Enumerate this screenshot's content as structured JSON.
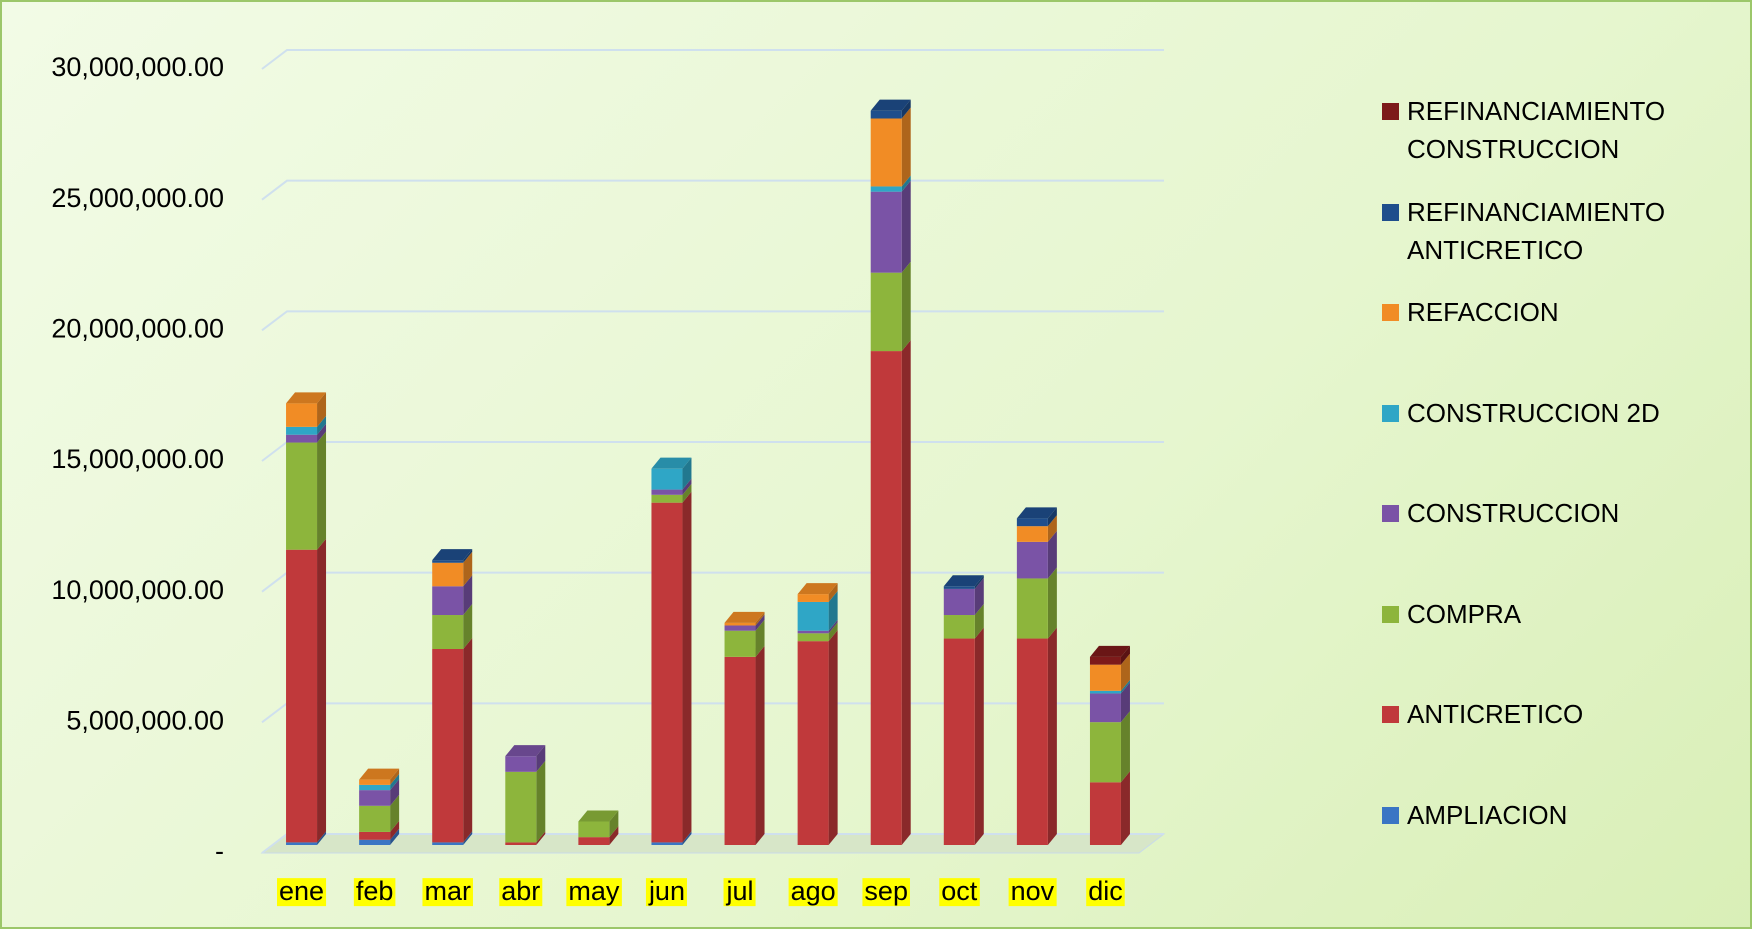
{
  "chart_data": {
    "type": "bar3d_stacked",
    "categories": [
      "ene",
      "feb",
      "mar",
      "abr",
      "may",
      "jun",
      "jul",
      "ago",
      "sep",
      "oct",
      "nov",
      "dic"
    ],
    "series": [
      {
        "name": "AMPLIACION",
        "color": "#3a75c4",
        "values": [
          100000.0,
          200000.0,
          100000.0,
          0,
          0,
          100000.0,
          0,
          0,
          0,
          0,
          0,
          0
        ]
      },
      {
        "name": "ANTICRETICO",
        "color": "#c0393b",
        "values": [
          11200000.0,
          300000.0,
          7400000.0,
          100000.0,
          300000.0,
          13000000.0,
          7200000.0,
          7800000.0,
          18900000.0,
          7900000.0,
          7900000.0,
          2400000.0
        ]
      },
      {
        "name": "COMPRA",
        "color": "#8db53c",
        "values": [
          4100000.0,
          1000000.0,
          1300000.0,
          2700000.0,
          600000.0,
          300000.0,
          1000000.0,
          300000.0,
          3000000.0,
          900000.0,
          2300000.0,
          2300000.0
        ]
      },
      {
        "name": "CONSTRUCCION",
        "color": "#7a53a6",
        "values": [
          300000.0,
          600000.0,
          1100000.0,
          600000.0,
          0,
          200000.0,
          200000.0,
          100000.0,
          3100000.0,
          1000000.0,
          1400000.0,
          1100000.0
        ]
      },
      {
        "name": "CONSTRUCCION 2D",
        "color": "#2fa6c6",
        "values": [
          300000.0,
          200000.0,
          0,
          0,
          0,
          800000.0,
          0,
          1100000.0,
          200000.0,
          0,
          0,
          100000.0
        ]
      },
      {
        "name": "REFACCION",
        "color": "#f18c25",
        "values": [
          900000.0,
          200000.0,
          900000.0,
          0,
          0,
          0,
          100000.0,
          300000.0,
          2600000.0,
          0,
          600000.0,
          1000000.0
        ]
      },
      {
        "name": "REFINANCIAMIENTO ANTICRETICO",
        "color": "#1f4e8c",
        "values": [
          0,
          0,
          100000.0,
          0,
          0,
          0,
          0,
          0,
          300000.0,
          100000.0,
          300000.0,
          0
        ]
      },
      {
        "name": "REFINANCIAMIENTO CONSTRUCCION",
        "color": "#7d1a1a",
        "values": [
          0,
          0,
          0,
          0,
          0,
          0,
          0,
          0,
          0,
          0,
          0,
          300000.0
        ]
      }
    ],
    "ylim": [
      0,
      30000000
    ],
    "yticks": [
      {
        "value": 0,
        "label": "-"
      },
      {
        "value": 5000000,
        "label": "5,000,000.00"
      },
      {
        "value": 10000000,
        "label": "10,000,000.00"
      },
      {
        "value": 15000000,
        "label": "15,000,000.00"
      },
      {
        "value": 20000000,
        "label": "20,000,000.00"
      },
      {
        "value": 25000000,
        "label": "25,000,000.00"
      },
      {
        "value": 30000000,
        "label": "30,000,000.00"
      }
    ],
    "grid": true,
    "legend": "right"
  }
}
